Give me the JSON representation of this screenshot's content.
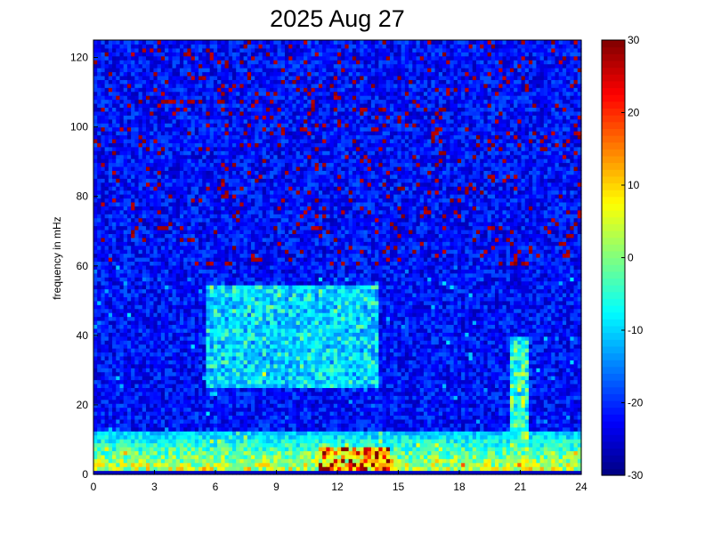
{
  "chart_data": {
    "type": "heatmap",
    "title": "2025 Aug 27",
    "xlabel": "",
    "ylabel": "frequency in mHz",
    "xlim": [
      0,
      24
    ],
    "ylim": [
      0,
      125
    ],
    "x_ticks": [
      0,
      3,
      6,
      9,
      12,
      15,
      18,
      21,
      24
    ],
    "y_ticks": [
      0,
      20,
      40,
      60,
      80,
      100,
      120
    ],
    "colorbar": {
      "range": [
        -30,
        30
      ],
      "ticks": [
        30,
        20,
        10,
        0,
        -10,
        -20,
        -30
      ],
      "colormap": "jet"
    },
    "grid": false,
    "background_level": -22,
    "features": [
      {
        "name": "low-frequency band",
        "x": [
          0,
          24
        ],
        "y": [
          0,
          12
        ],
        "value": 10
      },
      {
        "name": "mid-frequency enhancement",
        "x": [
          5.5,
          14
        ],
        "y": [
          25,
          55
        ],
        "value": -6
      },
      {
        "name": "burst near 21h",
        "x": [
          20.5,
          21.5
        ],
        "y": [
          0,
          40
        ],
        "value": 0
      },
      {
        "name": "strong low-frequency patch near 12-14h",
        "x": [
          11,
          14.5
        ],
        "y": [
          0,
          8
        ],
        "value": 25
      }
    ]
  }
}
